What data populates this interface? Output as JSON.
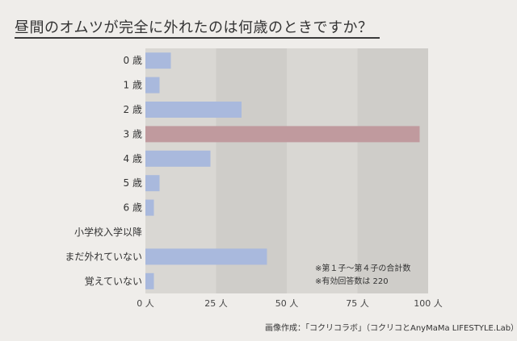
{
  "title": "昼間のオムツが完全に外れたのは何歳のときですか？",
  "notes": [
    "※第１子〜第４子の合計数",
    "※有効回答数は 220"
  ],
  "credit": "画像作成：「コクリコラボ」（コクリコとAnyMaMa LIFESTYLE.Lab）",
  "colors": {
    "bar": "#a9b9dd",
    "highlight_bar": "#c09a9e",
    "plot_bg_light": "#d9d7d3",
    "plot_bg_dark": "#cfcdc9"
  },
  "chart_data": {
    "type": "bar",
    "orientation": "horizontal",
    "title": "昼間のオムツが完全に外れたのは何歳のときですか？",
    "categories": [
      "0 歳",
      "1 歳",
      "2 歳",
      "3 歳",
      "4 歳",
      "5 歳",
      "6 歳",
      "小学校入学以降",
      "まだ外れていない",
      "覚えていない"
    ],
    "values": [
      9,
      5,
      34,
      97,
      23,
      5,
      3,
      0,
      43,
      3
    ],
    "highlight_index": 3,
    "xlim": [
      0,
      100
    ],
    "xticks": [
      0,
      25,
      50,
      75,
      100
    ],
    "xtick_labels": [
      "0 人",
      "25 人",
      "50 人",
      "75 人",
      "100 人"
    ],
    "grid": "alternating vertical bands"
  }
}
